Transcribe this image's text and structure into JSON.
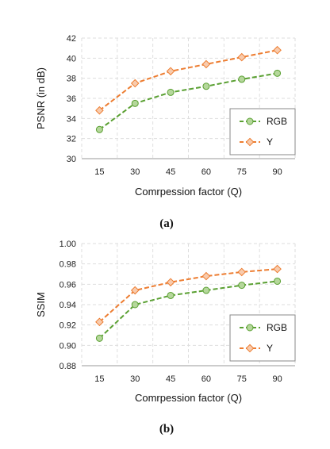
{
  "chart_data": [
    {
      "type": "line",
      "caption": "(a)",
      "xlabel": "Comrpession factor (Q)",
      "ylabel": "PSNR (in dB)",
      "x": [
        15,
        30,
        45,
        60,
        75,
        90
      ],
      "xticks": [
        "15",
        "30",
        "45",
        "60",
        "75",
        "90"
      ],
      "ylim": [
        30,
        42
      ],
      "yticks": [
        "30",
        "32",
        "34",
        "36",
        "38",
        "40",
        "42"
      ],
      "grid": true,
      "legend_position": "bottom-right",
      "series": [
        {
          "name": "RGB",
          "values": [
            32.9,
            35.5,
            36.6,
            37.2,
            37.9,
            38.5
          ],
          "color": "#5aa032",
          "marker_fill": "#b5d79b",
          "dash": "dashed",
          "marker": "circle"
        },
        {
          "name": "Y",
          "values": [
            34.8,
            37.5,
            38.7,
            39.4,
            40.1,
            40.8
          ],
          "color": "#ed7d31",
          "marker_fill": "#f8cbad",
          "dash": "dashed",
          "marker": "diamond"
        }
      ]
    },
    {
      "type": "line",
      "caption": "(b)",
      "xlabel": "Comrpession factor (Q)",
      "ylabel": "SSIM",
      "x": [
        15,
        30,
        45,
        60,
        75,
        90
      ],
      "xticks": [
        "15",
        "30",
        "45",
        "60",
        "75",
        "90"
      ],
      "ylim": [
        0.88,
        1.0
      ],
      "yticks": [
        "0.88",
        "0.90",
        "0.92",
        "0.94",
        "0.96",
        "0.98",
        "1.00"
      ],
      "grid": true,
      "legend_position": "bottom-right",
      "series": [
        {
          "name": "RGB",
          "values": [
            0.907,
            0.94,
            0.949,
            0.954,
            0.959,
            0.963
          ],
          "color": "#5aa032",
          "marker_fill": "#b5d79b",
          "dash": "dashed",
          "marker": "circle"
        },
        {
          "name": "Y",
          "values": [
            0.923,
            0.954,
            0.962,
            0.968,
            0.972,
            0.975
          ],
          "color": "#ed7d31",
          "marker_fill": "#f8cbad",
          "dash": "dashed",
          "marker": "diamond"
        }
      ]
    }
  ]
}
